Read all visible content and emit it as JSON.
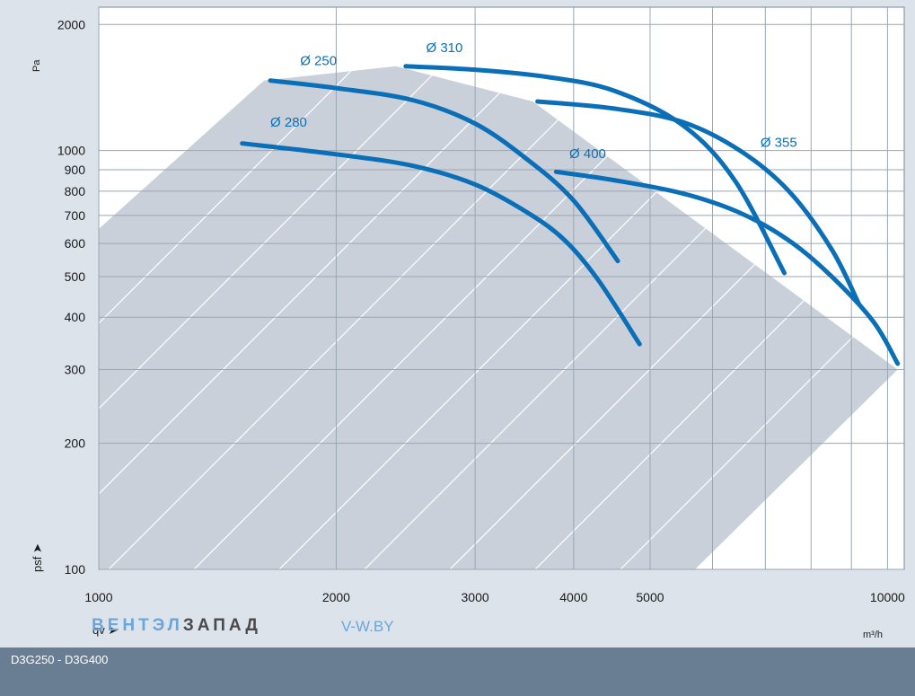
{
  "chart_data": {
    "type": "line",
    "title": "",
    "xlabel": "qv",
    "x_unit": "m³/h",
    "ylabel": "psf",
    "y_unit": "Pa",
    "x_scale": "log",
    "y_scale": "log",
    "xlim": [
      1000,
      10500
    ],
    "ylim": [
      100,
      2200
    ],
    "grid": true,
    "x_ticks": [
      {
        "value": 1000,
        "label": "1000"
      },
      {
        "value": 2000,
        "label": "2000"
      },
      {
        "value": 3000,
        "label": "3000"
      },
      {
        "value": 4000,
        "label": "4000"
      },
      {
        "value": 5000,
        "label": "5000"
      },
      {
        "value": 10000,
        "label": "10000"
      }
    ],
    "x_minor": [
      6000,
      7000,
      8000,
      9000
    ],
    "y_ticks": [
      {
        "value": 100,
        "label": "100"
      },
      {
        "value": 200,
        "label": "200"
      },
      {
        "value": 300,
        "label": "300"
      },
      {
        "value": 400,
        "label": "400"
      },
      {
        "value": 500,
        "label": "500"
      },
      {
        "value": 600,
        "label": "600"
      },
      {
        "value": 700,
        "label": "700"
      },
      {
        "value": 800,
        "label": "800"
      },
      {
        "value": 900,
        "label": "900"
      },
      {
        "value": 1000,
        "label": "1000"
      },
      {
        "value": 2000,
        "label": "2000"
      }
    ],
    "series": [
      {
        "name": "Ø 250",
        "x": [
          1650,
          2000,
          2500,
          3000,
          3500,
          4000,
          4550
        ],
        "y": [
          1470,
          1410,
          1320,
          1160,
          950,
          760,
          545
        ],
        "label_at": [
          1800,
          1600
        ]
      },
      {
        "name": "Ø 280",
        "x": [
          1520,
          2000,
          2500,
          3000,
          3500,
          3900,
          4300,
          4850
        ],
        "y": [
          1040,
          980,
          920,
          830,
          710,
          610,
          490,
          345
        ],
        "label_at": [
          1650,
          1140
        ]
      },
      {
        "name": "Ø 310",
        "x": [
          2450,
          3000,
          3700,
          4500,
          5500,
          6400,
          7400
        ],
        "y": [
          1590,
          1560,
          1500,
          1390,
          1150,
          850,
          510
        ],
        "label_at": [
          2600,
          1720
        ]
      },
      {
        "name": "Ø 355",
        "x": [
          3600,
          4500,
          5500,
          6500,
          7500,
          8500,
          9200
        ],
        "y": [
          1310,
          1260,
          1170,
          1000,
          800,
          580,
          430
        ],
        "label_at": [
          6900,
          1020
        ]
      },
      {
        "name": "Ø 400",
        "x": [
          3800,
          4500,
          5500,
          6500,
          7500,
          8500,
          9600,
          10300
        ],
        "y": [
          890,
          850,
          790,
          710,
          610,
          500,
          390,
          310
        ],
        "label_at": [
          3950,
          960
        ]
      }
    ],
    "shaded_region": {
      "polygon": [
        [
          1000,
          650
        ],
        [
          1620,
          1470
        ],
        [
          2380,
          1590
        ],
        [
          3550,
          1310
        ],
        [
          10300,
          300
        ],
        [
          5700,
          100
        ],
        [
          1000,
          100
        ]
      ]
    },
    "colors": {
      "curve": "#0b6fb8",
      "region": "#c9d0da",
      "plot_bg": "#ffffff",
      "grid": "#9aa6b2"
    }
  },
  "header": {
    "y_unit_label": "Pa"
  },
  "axis": {
    "y_symbol": "psf ➤",
    "x_symbol": "qv ➤",
    "x_unit_label": "m³/h"
  },
  "brand": {
    "light": "ВЕНТЭЛ",
    "dark": "ЗАПАД",
    "site": "V-W.BY"
  },
  "footer": {
    "model_range": "D3G250 - D3G400"
  }
}
